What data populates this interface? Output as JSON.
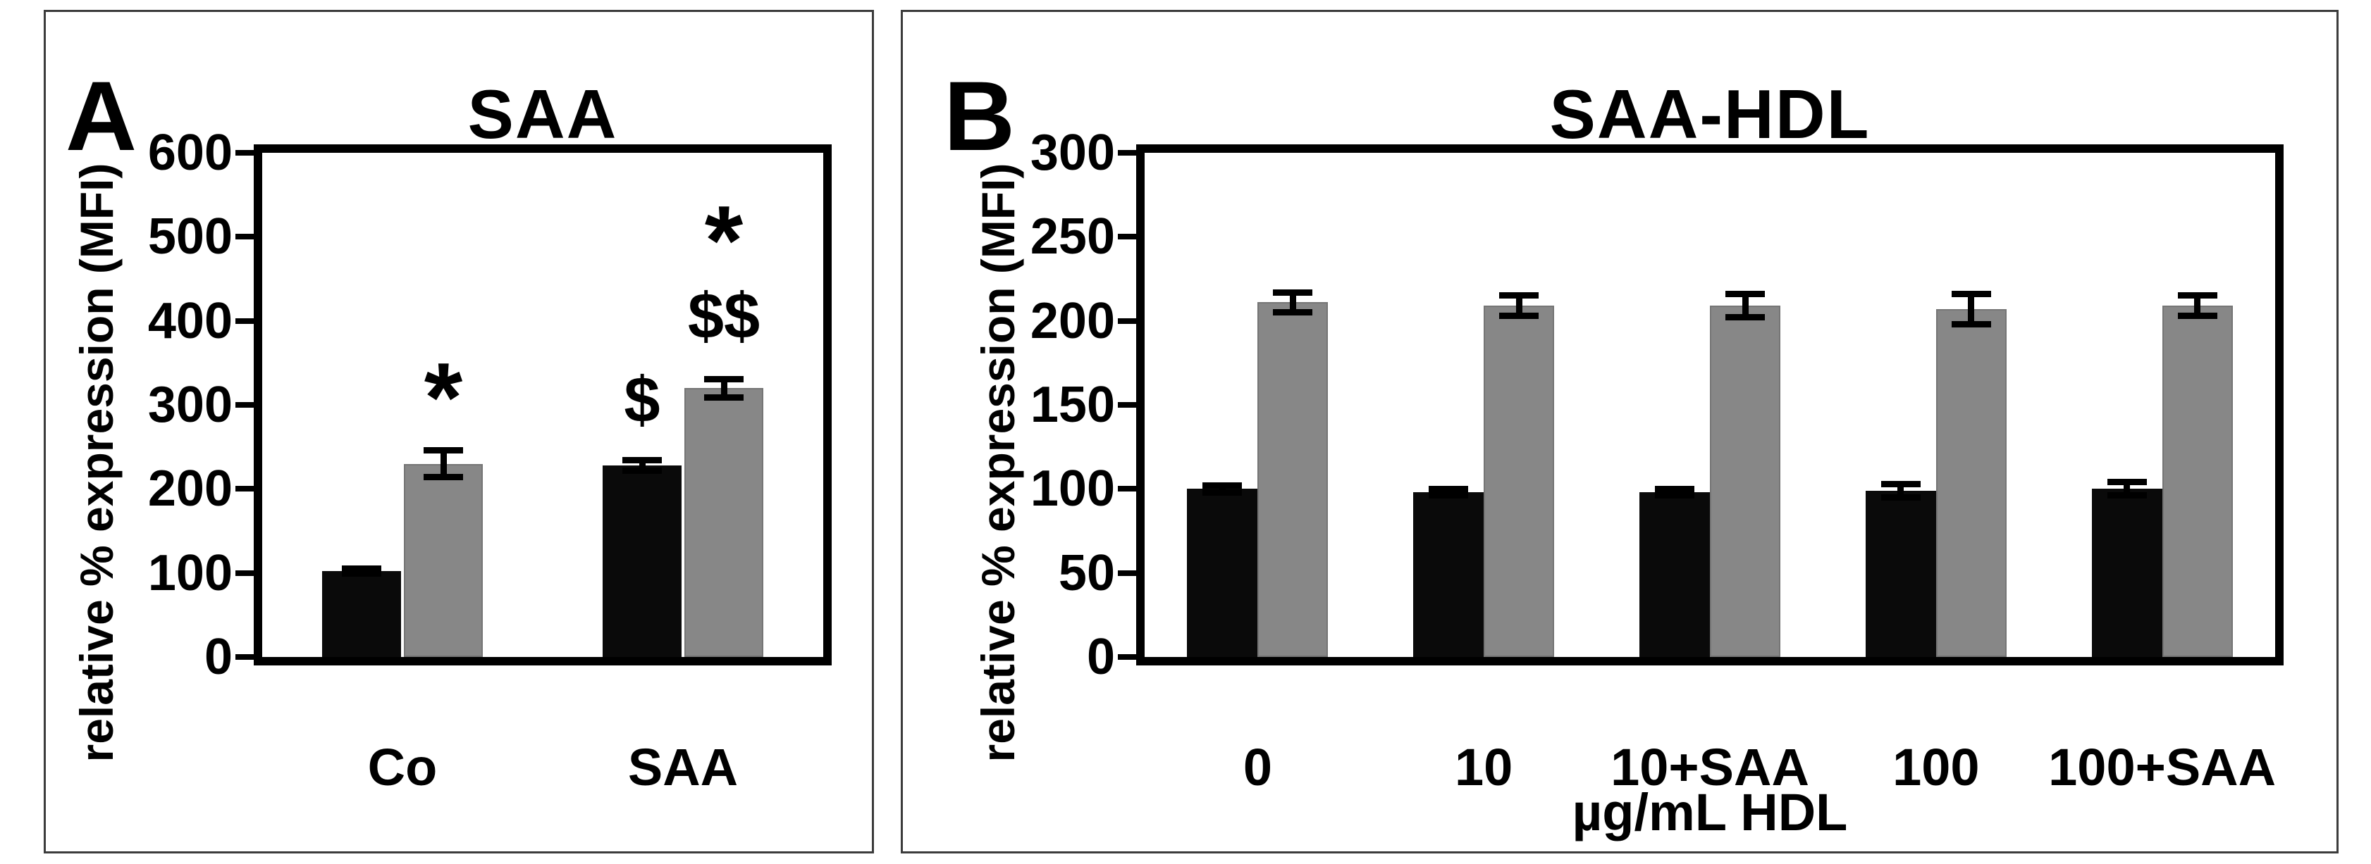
{
  "figure": {
    "background_color": "#ffffff",
    "panel_border_color": "#3c3c3c",
    "plot_border_color": "#000000",
    "bar_black_color": "#0a0a0a",
    "bar_gray_color": "#878787"
  },
  "chart_data": [
    {
      "type": "bar",
      "panel_label": "A",
      "title": "SAA",
      "ylabel": "relative % expression (MFI)",
      "xlabel": "",
      "ylim": [
        0,
        600
      ],
      "ytick_step": 100,
      "yticks": [
        "0",
        "100",
        "200",
        "300",
        "400",
        "500",
        "600"
      ],
      "grid": false,
      "legend": "none",
      "categories": [
        "Co",
        "SAA"
      ],
      "series": [
        {
          "name": "black",
          "color": "#0a0a0a",
          "values": [
            102,
            228
          ],
          "errors": [
            3,
            6
          ]
        },
        {
          "name": "gray",
          "color": "#878787",
          "values": [
            230,
            320
          ],
          "errors": [
            16,
            11
          ]
        }
      ],
      "annotations": [
        {
          "text": "*",
          "category_index": 0,
          "series": "gray",
          "y": 325
        },
        {
          "text": "$",
          "category_index": 1,
          "series": "black",
          "y": 306
        },
        {
          "text": "$$",
          "category_index": 1,
          "series": "gray",
          "y": 406
        },
        {
          "text": "*",
          "category_index": 1,
          "series": "gray",
          "y": 512
        }
      ]
    },
    {
      "type": "bar",
      "panel_label": "B",
      "title": "SAA-HDL",
      "ylabel": "relative % expression (MFI)",
      "xlabel": "µg/mL HDL",
      "ylim": [
        0,
        300
      ],
      "ytick_step": 50,
      "yticks": [
        "0",
        "50",
        "100",
        "150",
        "200",
        "250",
        "300"
      ],
      "grid": false,
      "legend": "none",
      "categories": [
        "0",
        "10",
        "10+SAA",
        "100",
        "100+SAA"
      ],
      "series": [
        {
          "name": "black",
          "color": "#0a0a0a",
          "values": [
            100,
            98,
            98,
            99,
            100
          ],
          "errors": [
            2,
            2,
            2,
            4,
            4
          ]
        },
        {
          "name": "gray",
          "color": "#878787",
          "values": [
            211,
            209,
            209,
            207,
            209
          ],
          "errors": [
            6,
            6,
            7,
            9,
            6
          ]
        }
      ],
      "annotations": []
    }
  ]
}
